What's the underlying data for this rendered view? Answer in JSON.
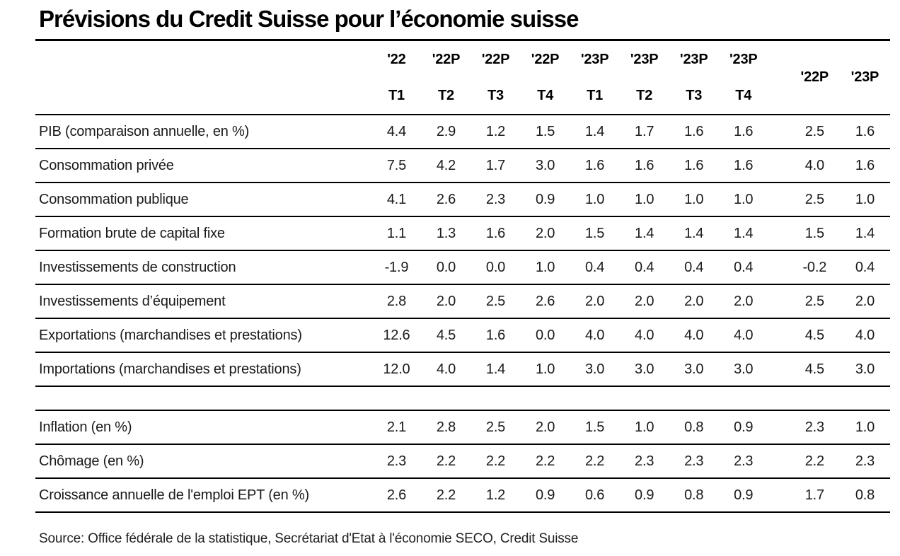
{
  "title": "Prévisions du Credit Suisse pour l’économie suisse",
  "chart_data": {
    "type": "table",
    "title": "Prévisions du Credit Suisse pour l’économie suisse",
    "header": {
      "years": [
        "'22",
        "'22P",
        "'22P",
        "'22P",
        "'23P",
        "'23P",
        "'23P",
        "'23P"
      ],
      "quarters": [
        "T1",
        "T2",
        "T3",
        "T4",
        "T1",
        "T2",
        "T3",
        "T4"
      ],
      "annual": [
        "'22P",
        "'23P"
      ]
    },
    "sections": [
      {
        "name": "comptes-nationaux",
        "rows": [
          {
            "label": "PIB (comparaison annuelle, en %)",
            "quarters": [
              "4.4",
              "2.9",
              "1.2",
              "1.5",
              "1.4",
              "1.7",
              "1.6",
              "1.6"
            ],
            "annual": [
              "2.5",
              "1.6"
            ]
          },
          {
            "label": "Consommation privée",
            "quarters": [
              "7.5",
              "4.2",
              "1.7",
              "3.0",
              "1.6",
              "1.6",
              "1.6",
              "1.6"
            ],
            "annual": [
              "4.0",
              "1.6"
            ]
          },
          {
            "label": "Consommation publique",
            "quarters": [
              "4.1",
              "2.6",
              "2.3",
              "0.9",
              "1.0",
              "1.0",
              "1.0",
              "1.0"
            ],
            "annual": [
              "2.5",
              "1.0"
            ]
          },
          {
            "label": "Formation brute de capital fixe",
            "quarters": [
              "1.1",
              "1.3",
              "1.6",
              "2.0",
              "1.5",
              "1.4",
              "1.4",
              "1.4"
            ],
            "annual": [
              "1.5",
              "1.4"
            ]
          },
          {
            "label": "Investissements de construction",
            "quarters": [
              "-1.9",
              "0.0",
              "0.0",
              "1.0",
              "0.4",
              "0.4",
              "0.4",
              "0.4"
            ],
            "annual": [
              "-0.2",
              "0.4"
            ]
          },
          {
            "label": "Investissements d’équipement",
            "quarters": [
              "2.8",
              "2.0",
              "2.5",
              "2.6",
              "2.0",
              "2.0",
              "2.0",
              "2.0"
            ],
            "annual": [
              "2.5",
              "2.0"
            ]
          },
          {
            "label": "Exportations (marchandises et prestations)",
            "quarters": [
              "12.6",
              "4.5",
              "1.6",
              "0.0",
              "4.0",
              "4.0",
              "4.0",
              "4.0"
            ],
            "annual": [
              "4.5",
              "4.0"
            ]
          },
          {
            "label": "Importations (marchandises et prestations)",
            "quarters": [
              "12.0",
              "4.0",
              "1.4",
              "1.0",
              "3.0",
              "3.0",
              "3.0",
              "3.0"
            ],
            "annual": [
              "4.5",
              "3.0"
            ]
          }
        ]
      },
      {
        "name": "indicateurs",
        "rows": [
          {
            "label": "Inflation (en %)",
            "quarters": [
              "2.1",
              "2.8",
              "2.5",
              "2.0",
              "1.5",
              "1.0",
              "0.8",
              "0.9"
            ],
            "annual": [
              "2.3",
              "1.0"
            ]
          },
          {
            "label": "Chômage (en %)",
            "quarters": [
              "2.3",
              "2.2",
              "2.2",
              "2.2",
              "2.2",
              "2.3",
              "2.3",
              "2.3"
            ],
            "annual": [
              "2.2",
              "2.3"
            ]
          },
          {
            "label": "Croissance annuelle de l'emploi EPT (en %)",
            "quarters": [
              "2.6",
              "2.2",
              "1.2",
              "0.9",
              "0.6",
              "0.9",
              "0.8",
              "0.9"
            ],
            "annual": [
              "1.7",
              "0.8"
            ]
          }
        ]
      }
    ]
  },
  "source": "Source: Office fédérale de la statistique, Secrétariat d'Etat à l'économie SECO, Credit Suisse"
}
